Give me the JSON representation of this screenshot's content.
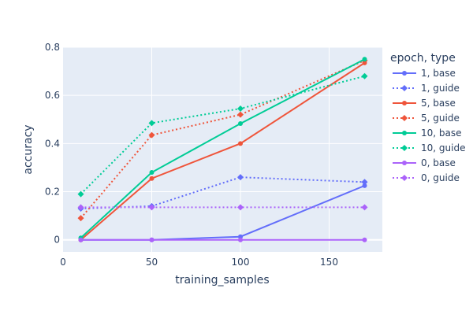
{
  "chart_data": {
    "type": "line",
    "title": "",
    "xlabel": "training_samples",
    "ylabel": "accuracy",
    "xlim": [
      0,
      180
    ],
    "ylim": [
      -0.05,
      0.8
    ],
    "xticks": [
      0,
      50,
      100,
      150
    ],
    "yticks": [
      0,
      0.2,
      0.4,
      0.6,
      0.8
    ],
    "x_tick_labels": [
      "0",
      "50",
      "100",
      "150"
    ],
    "y_tick_labels": [
      "0",
      "0.2",
      "0.4",
      "0.6",
      "0.8"
    ],
    "x": [
      10,
      50,
      100,
      170
    ],
    "legend_title": "epoch, type",
    "legend_position": "right",
    "grid": true,
    "series": [
      {
        "name": "1, base",
        "color": "#636efa",
        "dash": false,
        "marker": "circle",
        "values": [
          0,
          0,
          0.013,
          0.225
        ]
      },
      {
        "name": "1, guide",
        "color": "#636efa",
        "dash": true,
        "marker": "diamond",
        "values": [
          0.13,
          0.14,
          0.26,
          0.24
        ]
      },
      {
        "name": "5, base",
        "color": "#ef553b",
        "dash": false,
        "marker": "circle",
        "values": [
          0,
          0.255,
          0.4,
          0.735
        ]
      },
      {
        "name": "5, guide",
        "color": "#ef553b",
        "dash": true,
        "marker": "diamond",
        "values": [
          0.09,
          0.435,
          0.52,
          0.745
        ]
      },
      {
        "name": "10, base",
        "color": "#00cc96",
        "dash": false,
        "marker": "circle",
        "values": [
          0.008,
          0.28,
          0.483,
          0.75
        ]
      },
      {
        "name": "10, guide",
        "color": "#00cc96",
        "dash": true,
        "marker": "diamond",
        "values": [
          0.19,
          0.485,
          0.545,
          0.68
        ]
      },
      {
        "name": "0, base",
        "color": "#ab63fa",
        "dash": false,
        "marker": "circle",
        "values": [
          0,
          0,
          0,
          0
        ]
      },
      {
        "name": "0, guide",
        "color": "#ab63fa",
        "dash": true,
        "marker": "diamond",
        "values": [
          0.135,
          0.135,
          0.135,
          0.135
        ]
      }
    ]
  }
}
